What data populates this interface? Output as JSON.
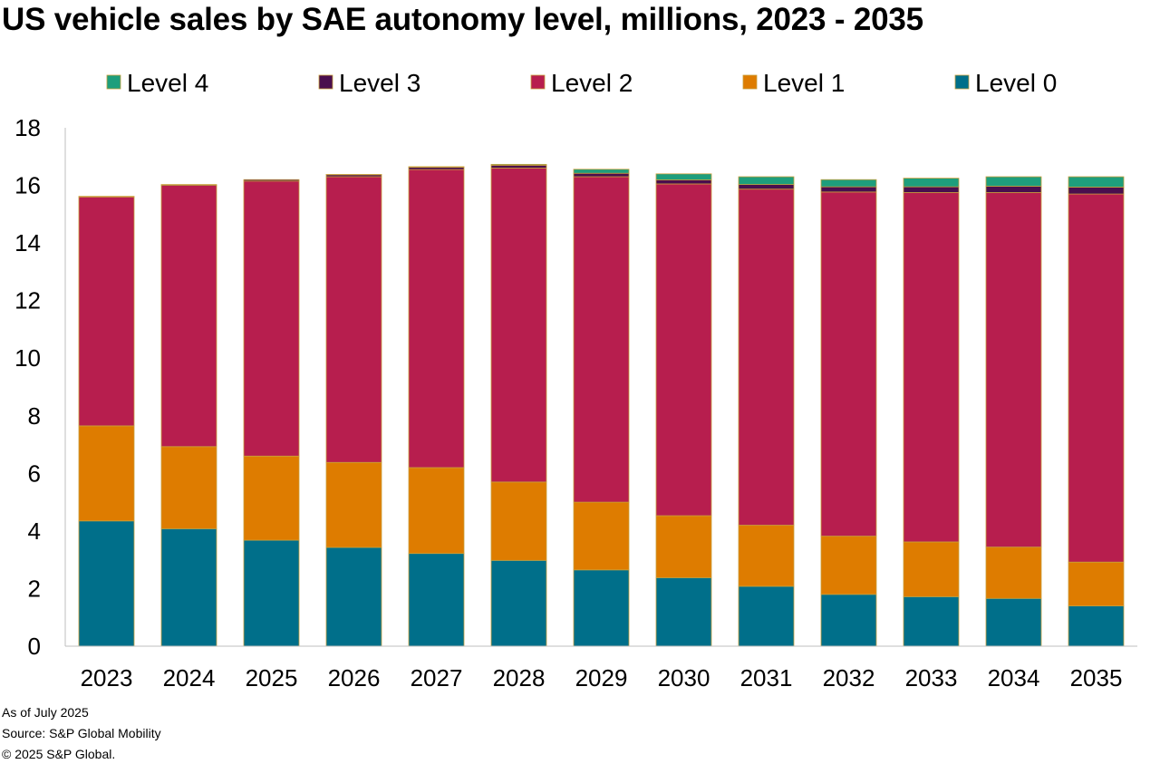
{
  "chart_data": {
    "type": "bar",
    "stacked": true,
    "title": "US vehicle sales by SAE autonomy level, millions, 2023 - 2035",
    "xlabel": "",
    "ylabel": "",
    "ylim": [
      0,
      18
    ],
    "yticks": [
      "0",
      "2",
      "4",
      "6",
      "8",
      "10",
      "12",
      "14",
      "16",
      "18"
    ],
    "grid": false,
    "legend_position": "top",
    "categories": [
      "2023",
      "2024",
      "2025",
      "2026",
      "2027",
      "2028",
      "2029",
      "2030",
      "2031",
      "2032",
      "2033",
      "2034",
      "2035"
    ],
    "series": [
      {
        "name": "Level 0",
        "color": "#006F8A",
        "values": [
          4.35,
          4.08,
          3.68,
          3.43,
          3.22,
          2.98,
          2.65,
          2.38,
          2.08,
          1.8,
          1.72,
          1.66,
          1.4
        ]
      },
      {
        "name": "Level 1",
        "color": "#DE7C00",
        "values": [
          3.3,
          2.85,
          2.92,
          2.95,
          2.98,
          2.72,
          2.35,
          2.15,
          2.12,
          2.02,
          1.9,
          1.78,
          1.52
        ]
      },
      {
        "name": "Level 2",
        "color": "#B71E4E",
        "values": [
          7.95,
          9.07,
          9.55,
          9.92,
          10.35,
          10.9,
          11.3,
          11.52,
          11.67,
          11.95,
          12.13,
          12.31,
          12.78
        ]
      },
      {
        "name": "Level 3",
        "color": "#4A0E4E",
        "values": [
          0.02,
          0.03,
          0.05,
          0.07,
          0.08,
          0.1,
          0.12,
          0.14,
          0.16,
          0.18,
          0.2,
          0.22,
          0.24
        ]
      },
      {
        "name": "Level 4",
        "color": "#1E9E7C",
        "values": [
          0.0,
          0.0,
          0.0,
          0.01,
          0.02,
          0.03,
          0.14,
          0.21,
          0.27,
          0.25,
          0.3,
          0.33,
          0.36
        ]
      }
    ],
    "legend_order": [
      "Level 4",
      "Level 3",
      "Level 2",
      "Level 1",
      "Level 0"
    ]
  },
  "footnotes": {
    "as_of": "As of July 2025",
    "source": "Source: S&P Global Mobility",
    "copyright": "© 2025 S&P Global."
  }
}
